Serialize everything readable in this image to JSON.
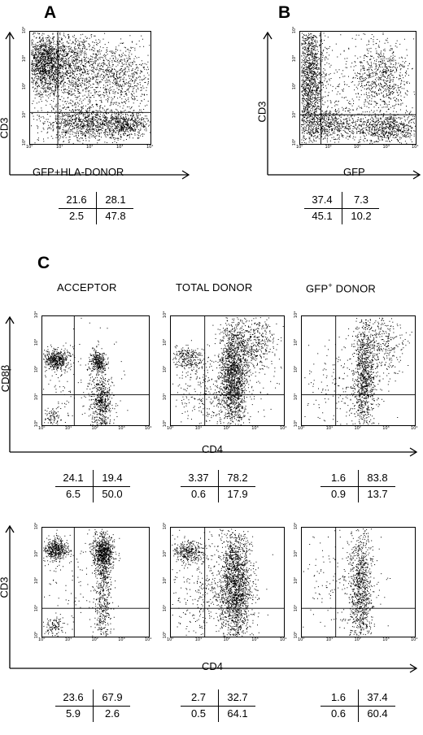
{
  "panels": {
    "A": {
      "letter": "A",
      "y_label": "CD3",
      "x_label": "GFP+HLA-DONOR",
      "quadrants": [
        "21.6",
        "28.1",
        "2.5",
        "47.8"
      ]
    },
    "B": {
      "letter": "B",
      "y_label": "CD3",
      "x_label": "GFP",
      "quadrants": [
        "37.4",
        "7.3",
        "45.1",
        "10.2"
      ]
    },
    "C": {
      "letter": "C",
      "columns": [
        {
          "title": "ACCEPTOR",
          "sup": ""
        },
        {
          "title": "TOTAL DONOR",
          "sup": ""
        },
        {
          "title_prefix": "GFP",
          "sup": "+",
          "title_suffix": " DONOR"
        }
      ],
      "row1": {
        "y_label": "CD8β",
        "x_label": "CD4",
        "quadrants": [
          [
            "24.1",
            "19.4",
            "6.5",
            "50.0"
          ],
          [
            "3.37",
            "78.2",
            "0.6",
            "17.9"
          ],
          [
            "1.6",
            "83.8",
            "0.9",
            "13.7"
          ]
        ]
      },
      "row2": {
        "y_label": "CD3",
        "x_label": "CD4",
        "quadrants": [
          [
            "23.6",
            "67.9",
            "5.9",
            "2.6"
          ],
          [
            "2.7",
            "32.7",
            "0.5",
            "64.1"
          ],
          [
            "1.6",
            "37.4",
            "0.6",
            "60.4"
          ]
        ]
      }
    }
  },
  "tick_labels": {
    "x": [
      "10⁰",
      "10¹",
      "10²",
      "10³",
      "10⁴"
    ],
    "y": [
      "10⁰",
      "10¹",
      "10²",
      "10³",
      "10⁴"
    ]
  }
}
